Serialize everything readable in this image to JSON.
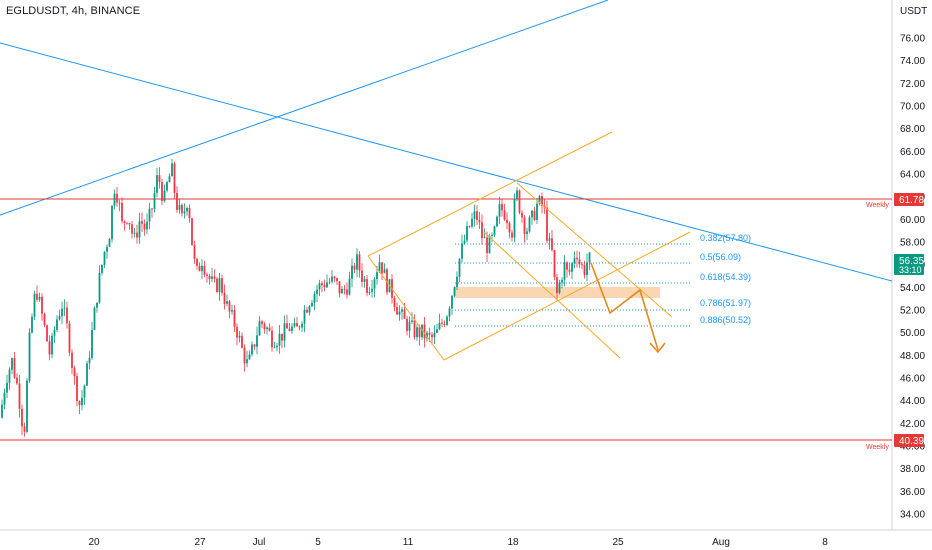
{
  "header": {
    "symbol_label": "EGLDUSDT, 4h, BINANCE",
    "currency": "USDT"
  },
  "colors": {
    "up": "#089981",
    "down": "#f23645",
    "trend_blue": "#2196f3",
    "channel_orange": "#f7a928",
    "weekly_red": "#e53935",
    "zone_fill": "#f9cfa6",
    "current_price_bg": "#089981"
  },
  "price_axis": {
    "ticks": [
      "76.00",
      "74.00",
      "72.00",
      "70.00",
      "68.00",
      "66.00",
      "64.00",
      "62.00",
      "60.00",
      "58.00",
      "56.00",
      "54.00",
      "52.00",
      "50.00",
      "48.00",
      "46.00",
      "44.00",
      "42.00",
      "40.00",
      "38.00",
      "36.00",
      "34.00"
    ]
  },
  "time_axis": {
    "labels": [
      "20",
      "27",
      "Jul",
      "5",
      "11",
      "18",
      "25",
      "Aug",
      "8"
    ]
  },
  "weekly_levels": [
    {
      "label": "Weekly",
      "price": 61.78,
      "price_label": "61.78"
    },
    {
      "label": "Weekly",
      "price": 40.39,
      "price_label": "40.39"
    }
  ],
  "current_price": {
    "value": "56.35",
    "countdown": "33:10"
  },
  "fib_levels": [
    {
      "label": "0.382(57.80)",
      "price": 57.8
    },
    {
      "label": "0.5(56.09)",
      "price": 56.09
    },
    {
      "label": "0.618(54.39)",
      "price": 54.39
    },
    {
      "label": "0.786(51.97)",
      "price": 51.97
    },
    {
      "label": "0.886(50.52)",
      "price": 50.52
    }
  ],
  "chart_data": {
    "type": "candlestick",
    "title": "EGLDUSDT, 4h, BINANCE",
    "ylabel": "USDT",
    "ylim": [
      32.8,
      77.8
    ],
    "grid": false,
    "x_tick_labels": [
      "20",
      "27",
      "Jul",
      "5",
      "11",
      "18",
      "25",
      "Aug",
      "8"
    ],
    "price_path": [
      [
        0,
        42.5
      ],
      [
        6,
        46.0
      ],
      [
        12,
        47.5
      ],
      [
        18,
        45.0
      ],
      [
        24,
        41.0
      ],
      [
        30,
        50.0
      ],
      [
        36,
        54.0
      ],
      [
        42,
        51.5
      ],
      [
        50,
        48.0
      ],
      [
        56,
        51.0
      ],
      [
        62,
        52.5
      ],
      [
        68,
        50.0
      ],
      [
        74,
        46.0
      ],
      [
        80,
        43.5
      ],
      [
        86,
        46.0
      ],
      [
        92,
        50.0
      ],
      [
        98,
        54.0
      ],
      [
        104,
        57.0
      ],
      [
        110,
        59.0
      ],
      [
        114,
        63.0
      ],
      [
        118,
        62.0
      ],
      [
        122,
        59.5
      ],
      [
        128,
        60.5
      ],
      [
        134,
        58.0
      ],
      [
        140,
        60.0
      ],
      [
        146,
        59.0
      ],
      [
        152,
        61.0
      ],
      [
        158,
        64.0
      ],
      [
        164,
        61.5
      ],
      [
        168,
        63.5
      ],
      [
        172,
        64.2
      ],
      [
        176,
        61.5
      ],
      [
        182,
        60.0
      ],
      [
        188,
        62.0
      ],
      [
        192,
        58.0
      ],
      [
        196,
        55.0
      ],
      [
        202,
        56.5
      ],
      [
        208,
        55.0
      ],
      [
        214,
        54.0
      ],
      [
        220,
        54.5
      ],
      [
        228,
        52.0
      ],
      [
        236,
        50.5
      ],
      [
        242,
        48.5
      ],
      [
        248,
        47.0
      ],
      [
        254,
        49.0
      ],
      [
        260,
        51.0
      ],
      [
        266,
        50.5
      ],
      [
        272,
        49.5
      ],
      [
        278,
        49.5
      ],
      [
        284,
        50.0
      ],
      [
        290,
        50.5
      ],
      [
        296,
        50.0
      ],
      [
        302,
        51.5
      ],
      [
        310,
        53.0
      ],
      [
        318,
        54.0
      ],
      [
        326,
        54.5
      ],
      [
        334,
        54.5
      ],
      [
        342,
        53.5
      ],
      [
        350,
        54.5
      ],
      [
        356,
        56.5
      ],
      [
        362,
        55.0
      ],
      [
        368,
        54.0
      ],
      [
        374,
        55.0
      ],
      [
        380,
        56.5
      ],
      [
        386,
        54.5
      ],
      [
        392,
        53.5
      ],
      [
        398,
        52.0
      ],
      [
        404,
        51.0
      ],
      [
        410,
        50.5
      ],
      [
        416,
        50.0
      ],
      [
        422,
        50.0
      ],
      [
        428,
        49.5
      ],
      [
        434,
        49.5
      ],
      [
        440,
        50.5
      ],
      [
        446,
        51.5
      ],
      [
        452,
        53.5
      ],
      [
        458,
        56.0
      ],
      [
        464,
        58.0
      ],
      [
        470,
        59.5
      ],
      [
        476,
        60.5
      ],
      [
        482,
        58.5
      ],
      [
        488,
        57.5
      ],
      [
        494,
        58.5
      ],
      [
        500,
        61.0
      ],
      [
        506,
        60.5
      ],
      [
        512,
        59.0
      ],
      [
        516,
        62.5
      ],
      [
        520,
        61.0
      ],
      [
        526,
        59.0
      ],
      [
        532,
        60.0
      ],
      [
        538,
        61.5
      ],
      [
        544,
        61.0
      ],
      [
        548,
        58.0
      ],
      [
        552,
        57.0
      ],
      [
        556,
        53.0
      ],
      [
        560,
        54.5
      ],
      [
        564,
        56.0
      ],
      [
        568,
        55.0
      ],
      [
        572,
        56.0
      ],
      [
        576,
        57.5
      ],
      [
        580,
        56.0
      ],
      [
        584,
        55.5
      ],
      [
        588,
        56.5
      ],
      [
        590,
        56.35
      ]
    ]
  }
}
